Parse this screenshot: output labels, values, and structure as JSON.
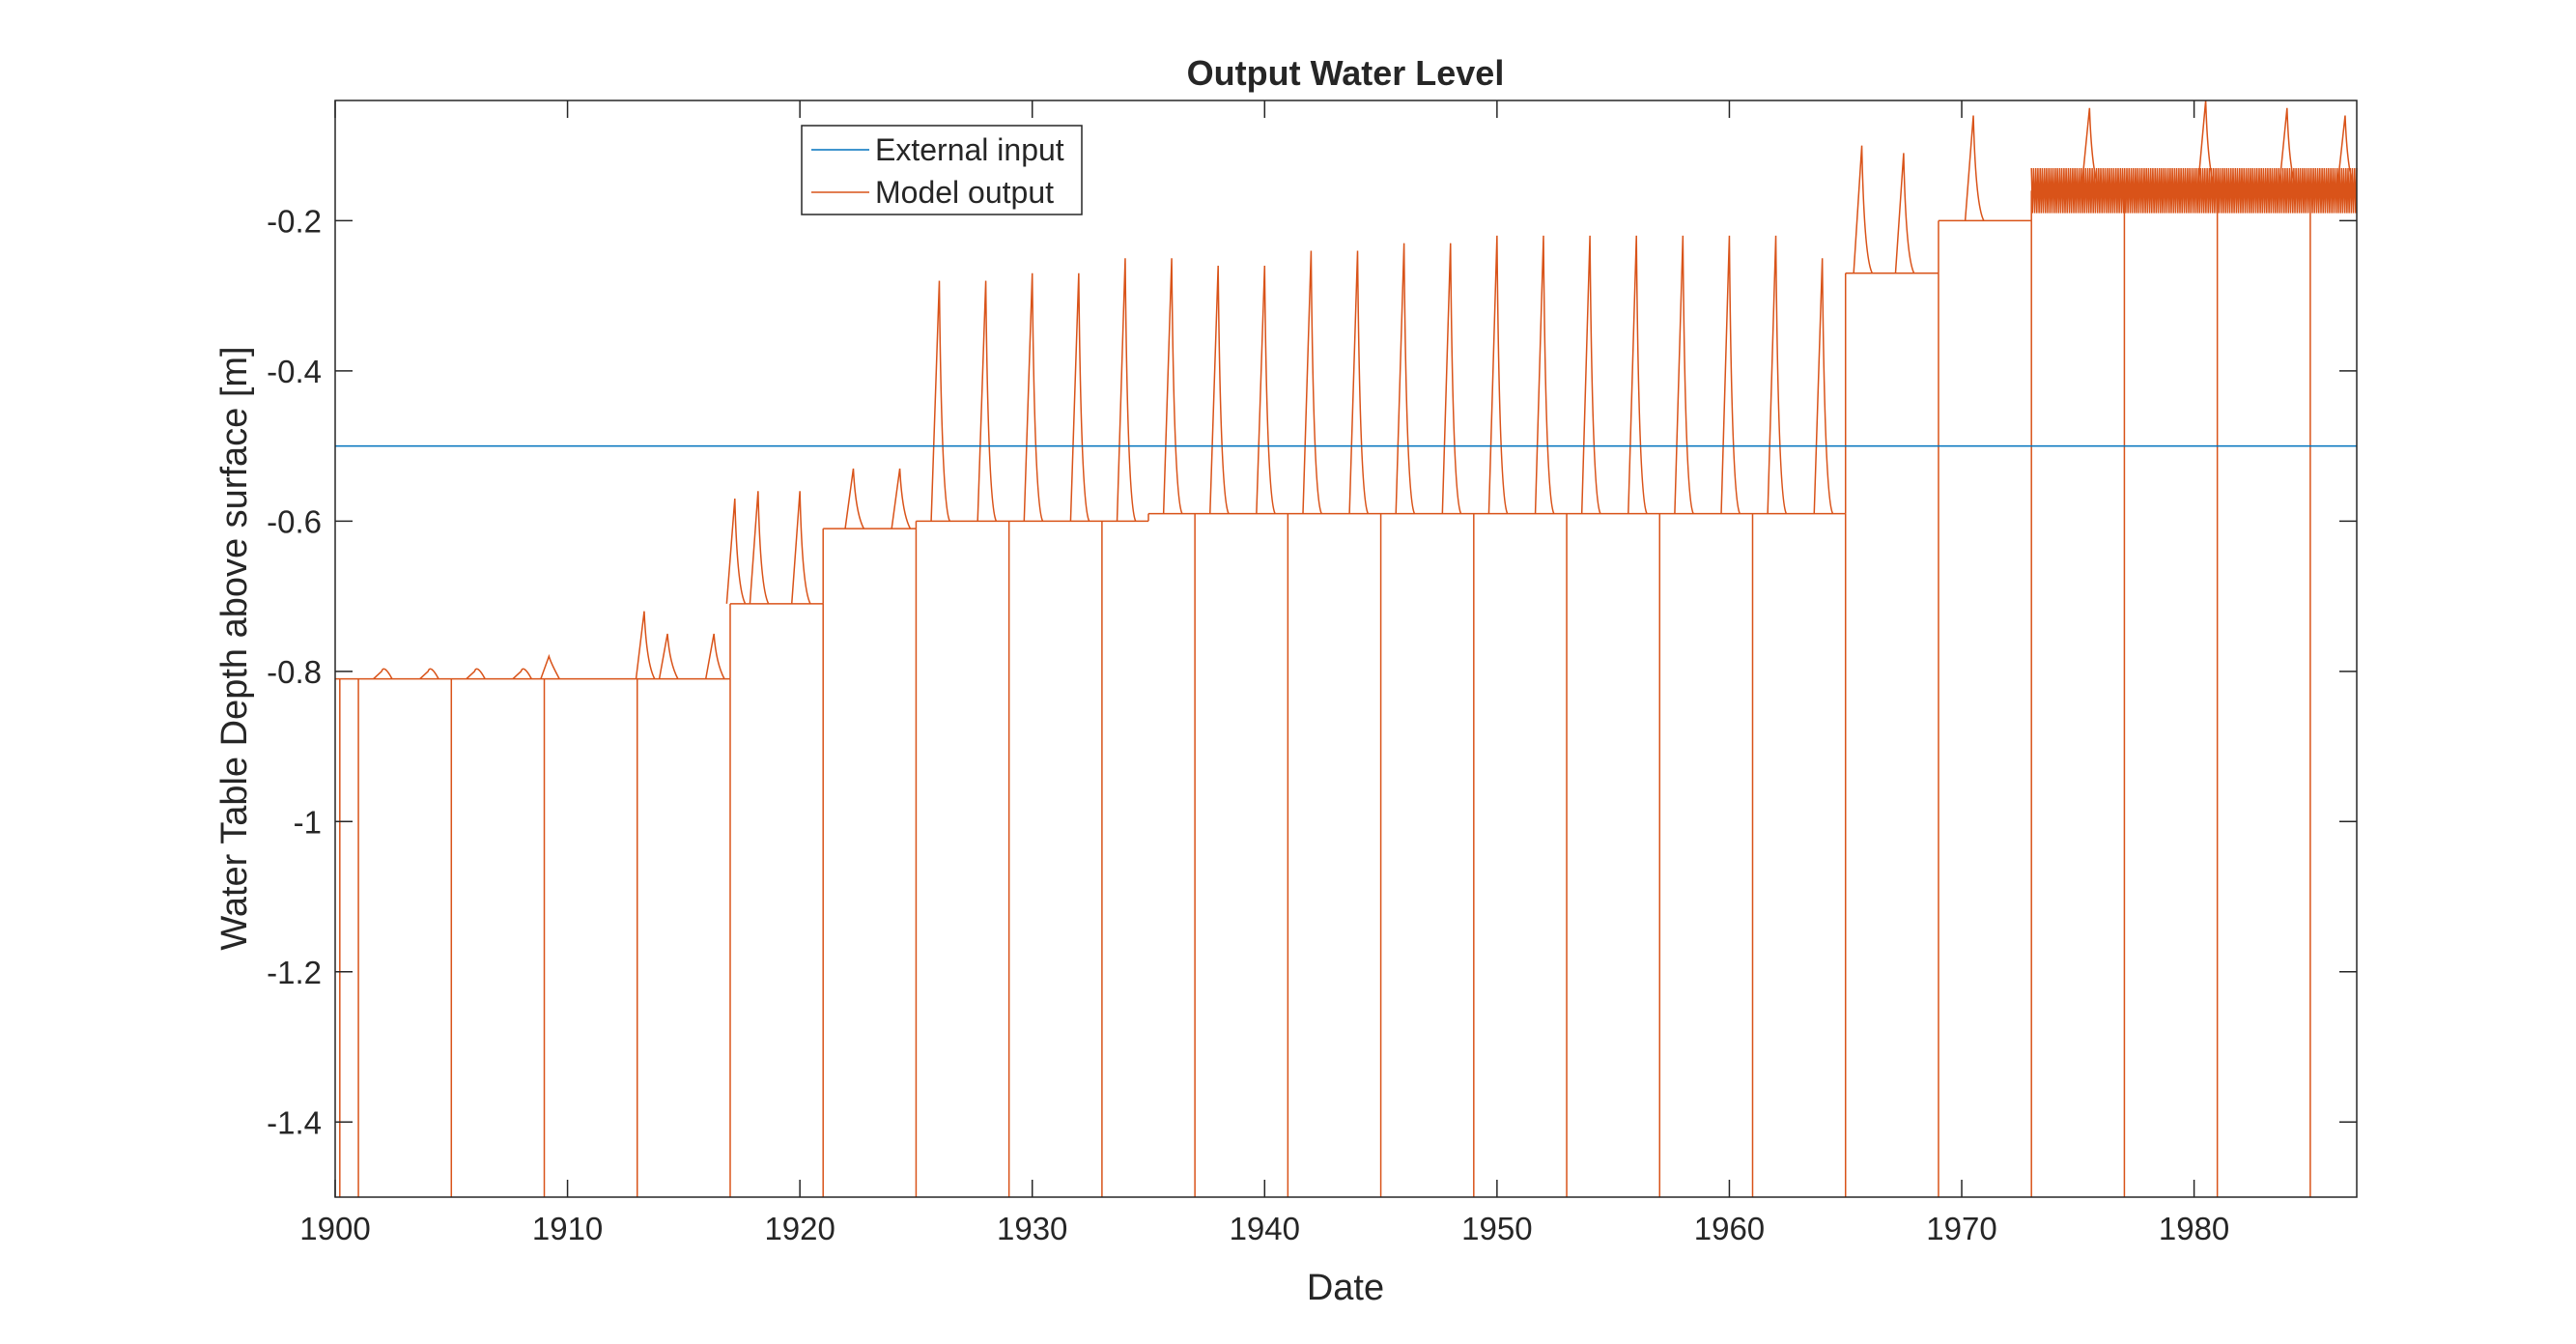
{
  "chart_data": {
    "type": "line",
    "title": "Output Water Level",
    "xlabel": "Date",
    "ylabel": "Water Table Depth above surface [m]",
    "xlim": [
      1900,
      1987
    ],
    "ylim": [
      -1.5,
      -0.04
    ],
    "xticks": [
      1900,
      1910,
      1920,
      1930,
      1940,
      1950,
      1960,
      1970,
      1980
    ],
    "yticks": [
      -1.4,
      -1.2,
      -1,
      -0.8,
      -0.6,
      -0.4,
      -0.2
    ],
    "xtick_labels": [
      "1900",
      "1910",
      "1920",
      "1930",
      "1940",
      "1950",
      "1960",
      "1970",
      "1980"
    ],
    "ytick_labels": [
      "-1.4",
      "-1.2",
      "-1",
      "-0.8",
      "-0.6",
      "-0.4",
      "-0.2"
    ],
    "grid": false,
    "legend_position": "top-left",
    "series": [
      {
        "name": "External input",
        "color": "#0072BD",
        "x": [
          1900,
          1987
        ],
        "y": [
          -0.5,
          -0.5
        ]
      },
      {
        "name": "Model output",
        "color": "#D95319",
        "baseline_segments": [
          {
            "x": [
              1900,
              1917
            ],
            "y": -0.81
          },
          {
            "x": [
              1917,
              1921
            ],
            "y": -0.71
          },
          {
            "x": [
              1921,
              1925
            ],
            "y": -0.61
          },
          {
            "x": [
              1925,
              1935
            ],
            "y": -0.6
          },
          {
            "x": [
              1935,
              1965
            ],
            "y": -0.59
          },
          {
            "x": [
              1965,
              1969
            ],
            "y": -0.27
          },
          {
            "x": [
              1969,
              1973
            ],
            "y": -0.2
          },
          {
            "x": [
              1973,
              1987
            ],
            "y": -0.16
          }
        ],
        "peaks": [
          {
            "x": 1902,
            "y": -0.8
          },
          {
            "x": 1904,
            "y": -0.8
          },
          {
            "x": 1906,
            "y": -0.8
          },
          {
            "x": 1908,
            "y": -0.8
          },
          {
            "x": 1909.2,
            "y": -0.78
          },
          {
            "x": 1913.3,
            "y": -0.72
          },
          {
            "x": 1914.3,
            "y": -0.75
          },
          {
            "x": 1916.3,
            "y": -0.75
          },
          {
            "x": 1917.2,
            "y": -0.57
          },
          {
            "x": 1918.2,
            "y": -0.56
          },
          {
            "x": 1920,
            "y": -0.56
          },
          {
            "x": 1922.3,
            "y": -0.53
          },
          {
            "x": 1924.3,
            "y": -0.53
          },
          {
            "x": 1926,
            "y": -0.28
          },
          {
            "x": 1928,
            "y": -0.28
          },
          {
            "x": 1930,
            "y": -0.27
          },
          {
            "x": 1932,
            "y": -0.27
          },
          {
            "x": 1934,
            "y": -0.25
          },
          {
            "x": 1936,
            "y": -0.25
          },
          {
            "x": 1938,
            "y": -0.26
          },
          {
            "x": 1940,
            "y": -0.26
          },
          {
            "x": 1942,
            "y": -0.24
          },
          {
            "x": 1944,
            "y": -0.24
          },
          {
            "x": 1946,
            "y": -0.23
          },
          {
            "x": 1948,
            "y": -0.23
          },
          {
            "x": 1950,
            "y": -0.22
          },
          {
            "x": 1952,
            "y": -0.22
          },
          {
            "x": 1954,
            "y": -0.22
          },
          {
            "x": 1956,
            "y": -0.22
          },
          {
            "x": 1958,
            "y": -0.22
          },
          {
            "x": 1960,
            "y": -0.22
          },
          {
            "x": 1962,
            "y": -0.22
          },
          {
            "x": 1964,
            "y": -0.25
          },
          {
            "x": 1965.7,
            "y": -0.1
          },
          {
            "x": 1967.5,
            "y": -0.11
          },
          {
            "x": 1970.5,
            "y": -0.06
          },
          {
            "x": 1975.5,
            "y": -0.05
          },
          {
            "x": 1980.5,
            "y": -0.04
          },
          {
            "x": 1984,
            "y": -0.05
          },
          {
            "x": 1986.5,
            "y": -0.06
          }
        ],
        "dips": [
          {
            "x": 1900.2,
            "y": -1.5
          },
          {
            "x": 1901,
            "y": -1.5
          },
          {
            "x": 1905,
            "y": -1.5
          },
          {
            "x": 1909,
            "y": -1.5
          },
          {
            "x": 1913,
            "y": -1.5
          },
          {
            "x": 1917,
            "y": -1.5
          },
          {
            "x": 1921,
            "y": -1.5
          },
          {
            "x": 1925,
            "y": -1.5
          },
          {
            "x": 1929,
            "y": -1.5
          },
          {
            "x": 1933,
            "y": -1.5
          },
          {
            "x": 1937,
            "y": -1.5
          },
          {
            "x": 1941,
            "y": -1.5
          },
          {
            "x": 1945,
            "y": -1.5
          },
          {
            "x": 1949,
            "y": -1.5
          },
          {
            "x": 1953,
            "y": -1.5
          },
          {
            "x": 1957,
            "y": -1.5
          },
          {
            "x": 1961,
            "y": -1.5
          },
          {
            "x": 1965,
            "y": -1.5
          },
          {
            "x": 1969,
            "y": -1.5
          },
          {
            "x": 1973,
            "y": -1.5
          },
          {
            "x": 1977,
            "y": -1.5
          },
          {
            "x": 1981,
            "y": -1.5
          },
          {
            "x": 1985,
            "y": -1.5
          }
        ]
      }
    ]
  }
}
